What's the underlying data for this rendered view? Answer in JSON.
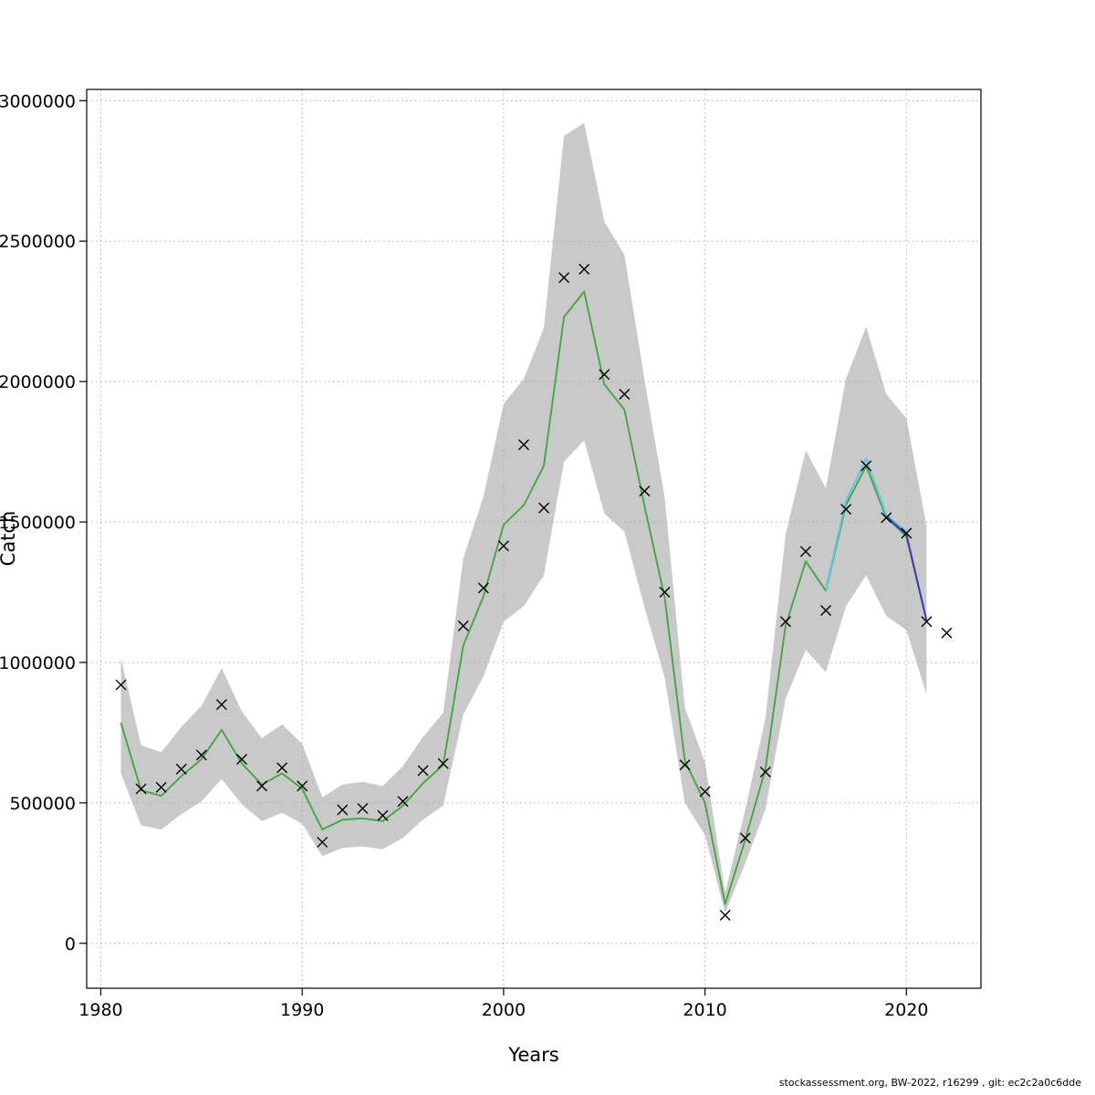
{
  "footer": {
    "credit": "stockassessment.org, BW-2022, r16299 , git: ec2c2a0c6dde"
  },
  "chart_data": {
    "type": "line",
    "title": "",
    "xlabel": "Years",
    "ylabel": "Catch",
    "grid": "dotted",
    "legend": "none",
    "xlim": [
      1979.3,
      2023.7
    ],
    "ylim": [
      -160000,
      3040000
    ],
    "x_ticks": [
      1980,
      1990,
      2000,
      2010,
      2020
    ],
    "y_ticks": [
      0,
      500000,
      1000000,
      1500000,
      2000000,
      2500000,
      3000000
    ],
    "colors": {
      "band": "#c9c9c9",
      "fit": "#41a33c",
      "retro_light": "#5bc8e0",
      "retro_dark": "#3a3aad",
      "marker": "#000000",
      "grid": "#aaaaaa"
    },
    "years": [
      1981,
      1982,
      1983,
      1984,
      1985,
      1986,
      1987,
      1988,
      1989,
      1990,
      1991,
      1992,
      1993,
      1994,
      1995,
      1996,
      1997,
      1998,
      1999,
      2000,
      2001,
      2002,
      2003,
      2004,
      2005,
      2006,
      2007,
      2008,
      2009,
      2010,
      2011,
      2012,
      2013,
      2014,
      2015,
      2016,
      2017,
      2018,
      2019,
      2020,
      2021,
      2022
    ],
    "observed": [
      920000,
      550000,
      555000,
      620000,
      670000,
      850000,
      655000,
      560000,
      625000,
      560000,
      360000,
      475000,
      480000,
      455000,
      505000,
      615000,
      640000,
      1130000,
      1265000,
      1415000,
      1775000,
      1550000,
      2370000,
      2400000,
      2025000,
      1955000,
      1610000,
      1250000,
      635000,
      540000,
      100000,
      375000,
      610000,
      1145000,
      1395000,
      1185000,
      1545000,
      1700000,
      1515000,
      1460000,
      1145000,
      1105000
    ],
    "fit": {
      "name": "model-fit",
      "years": [
        1981,
        1982,
        1983,
        1984,
        1985,
        1986,
        1987,
        1988,
        1989,
        1990,
        1991,
        1992,
        1993,
        1994,
        1995,
        1996,
        1997,
        1998,
        1999,
        2000,
        2001,
        2002,
        2003,
        2004,
        2005,
        2006,
        2007,
        2008,
        2009,
        2010,
        2011,
        2012,
        2013,
        2014,
        2015,
        2016,
        2017,
        2018,
        2019,
        2020,
        2021
      ],
      "values": [
        785000,
        545000,
        525000,
        595000,
        655000,
        760000,
        640000,
        565000,
        605000,
        550000,
        405000,
        440000,
        445000,
        435000,
        490000,
        570000,
        635000,
        1060000,
        1235000,
        1490000,
        1560000,
        1700000,
        2230000,
        2320000,
        1990000,
        1900000,
        1555000,
        1230000,
        650000,
        500000,
        140000,
        370000,
        620000,
        1130000,
        1360000,
        1255000,
        1560000,
        1700000,
        1515000,
        1450000,
        1150000
      ]
    },
    "band": {
      "name": "confidence-band",
      "years": [
        1981,
        1982,
        1983,
        1984,
        1985,
        1986,
        1987,
        1988,
        1989,
        1990,
        1991,
        1992,
        1993,
        1994,
        1995,
        1996,
        1997,
        1998,
        1999,
        2000,
        2001,
        2002,
        2003,
        2004,
        2005,
        2006,
        2007,
        2008,
        2009,
        2010,
        2011,
        2012,
        2013,
        2014,
        2015,
        2016,
        2017,
        2018,
        2019,
        2020,
        2021
      ],
      "lower": [
        605000,
        420000,
        405000,
        460000,
        505000,
        585000,
        495000,
        435000,
        465000,
        425000,
        310000,
        340000,
        345000,
        335000,
        375000,
        440000,
        490000,
        815000,
        950000,
        1145000,
        1200000,
        1310000,
        1715000,
        1790000,
        1530000,
        1465000,
        1195000,
        945000,
        500000,
        385000,
        108000,
        285000,
        477000,
        870000,
        1045000,
        965000,
        1200000,
        1310000,
        1165000,
        1115000,
        885000
      ],
      "upper": [
        1015000,
        705000,
        680000,
        770000,
        845000,
        980000,
        825000,
        730000,
        780000,
        710000,
        520000,
        565000,
        575000,
        560000,
        630000,
        735000,
        820000,
        1370000,
        1590000,
        1920000,
        2010000,
        2190000,
        2875000,
        2920000,
        2570000,
        2450000,
        2005000,
        1585000,
        840000,
        645000,
        181000,
        477000,
        800000,
        1455000,
        1755000,
        1620000,
        2010000,
        2195000,
        1955000,
        1870000,
        1485000
      ]
    },
    "retro": [
      {
        "name": "retro-run-light",
        "color_key": "retro_light",
        "years": [
          2016,
          2017,
          2018,
          2019,
          2020
        ],
        "values": [
          1260000,
          1575000,
          1725000,
          1525000,
          1465000
        ]
      },
      {
        "name": "retro-run-dark",
        "color_key": "retro_dark",
        "years": [
          2019,
          2020,
          2021
        ],
        "values": [
          1520000,
          1455000,
          1150000
        ]
      }
    ]
  }
}
